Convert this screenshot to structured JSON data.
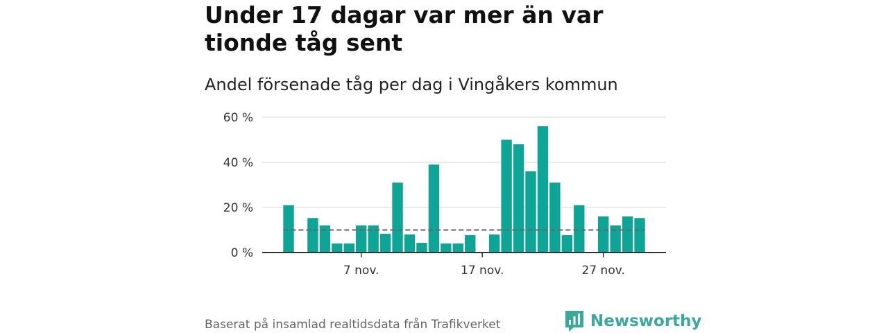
{
  "title": "Under 17 dagar var mer än var tionde tåg sent",
  "subtitle": "Andel försenade tåg per dag i Vingåkers kommun",
  "source": "Baserat på insamlad realtidsdata från Trafikverket",
  "brand": {
    "name": "Newsworthy",
    "icon": "newsworthy-logo-icon"
  },
  "colors": {
    "bar": "#0fa596",
    "reference_line": "#666666",
    "grid": "#dddddd",
    "axis": "#333333",
    "brand": "#3aa89a"
  },
  "chart_data": {
    "type": "bar",
    "x": [
      1,
      2,
      3,
      4,
      5,
      6,
      7,
      8,
      9,
      10,
      11,
      12,
      13,
      14,
      15,
      16,
      17,
      18,
      19,
      20,
      21,
      22,
      23,
      24,
      25,
      26,
      27,
      28,
      29,
      30
    ],
    "x_unit": "day of November",
    "values": [
      21,
      null,
      15.3,
      12,
      4,
      4,
      12,
      12,
      8.3,
      31,
      8,
      4.3,
      39,
      4,
      4,
      7.7,
      null,
      8,
      50,
      48,
      36,
      56,
      31,
      7.7,
      21,
      null,
      16,
      12,
      16,
      15.3
    ],
    "reference_line": 10,
    "ylim": [
      0,
      60
    ],
    "yticks": [
      0,
      20,
      40,
      60
    ],
    "ytick_labels": [
      "0 %",
      "20 %",
      "40 %",
      "60 %"
    ],
    "xticks": [
      7,
      17,
      27
    ],
    "xtick_labels": [
      "7 nov.",
      "17 nov.",
      "27 nov."
    ],
    "grid": "horizontal",
    "legend": "none"
  }
}
